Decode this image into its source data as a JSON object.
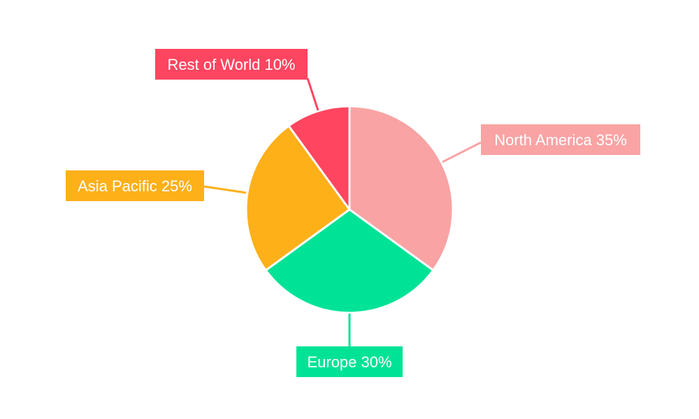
{
  "chart_data": {
    "type": "pie",
    "start_angle": "top",
    "direction": "clockwise",
    "slices": [
      {
        "name": "North America",
        "value": 35,
        "label": "North America 35%",
        "color": "#F9A3A4"
      },
      {
        "name": "Europe",
        "value": 30,
        "label": "Europe 30%",
        "color": "#00E396"
      },
      {
        "name": "Asia Pacific",
        "value": 25,
        "label": "Asia Pacific 25%",
        "color": "#FEB019"
      },
      {
        "name": "Rest of World",
        "value": 10,
        "label": "Rest of World 10%",
        "color": "#FF4560"
      }
    ],
    "legend": "none"
  }
}
